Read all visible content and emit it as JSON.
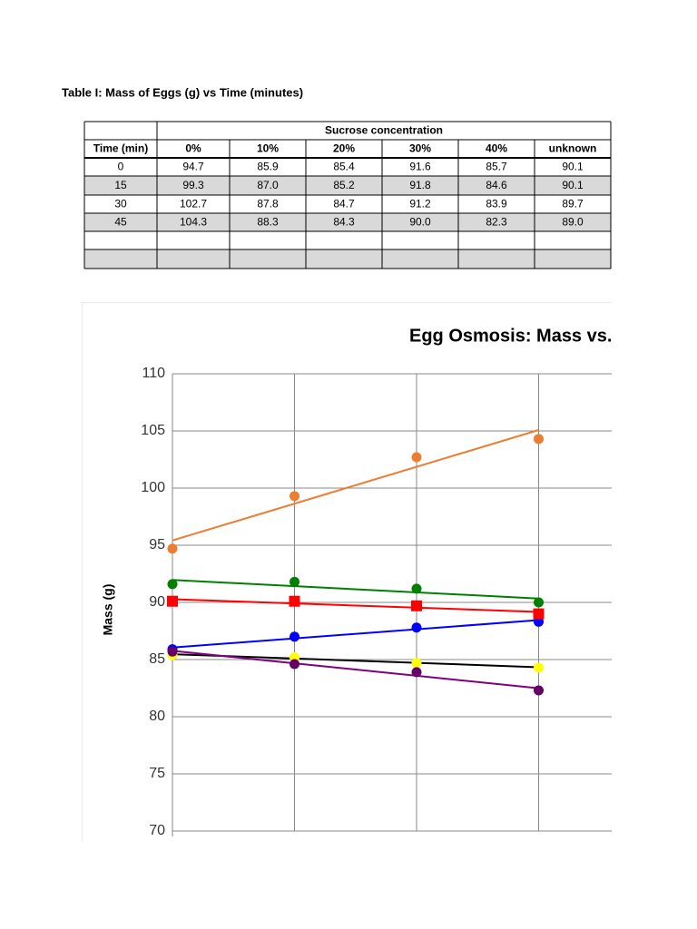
{
  "title": "Table I: Mass of Eggs (g) vs Time (minutes)",
  "table": {
    "group_header": "Sucrose concentration",
    "columns": [
      "Time (min)",
      "0%",
      "10%",
      "20%",
      "30%",
      "40%",
      "unknown"
    ],
    "rows": [
      [
        "0",
        "94.7",
        "85.9",
        "85.4",
        "91.6",
        "85.7",
        "90.1"
      ],
      [
        "15",
        "99.3",
        "87.0",
        "85.2",
        "91.8",
        "84.6",
        "90.1"
      ],
      [
        "30",
        "102.7",
        "87.8",
        "84.7",
        "91.2",
        "83.9",
        "89.7"
      ],
      [
        "45",
        "104.3",
        "88.3",
        "84.3",
        "90.0",
        "82.3",
        "89.0"
      ]
    ]
  },
  "chart_data": {
    "type": "scatter",
    "title": "Egg Osmosis: Mass vs. T",
    "y_label": "Mass (g)",
    "x": [
      0,
      15,
      30,
      45
    ],
    "xlim": [
      0,
      60
    ],
    "xticks": [
      0,
      15,
      30,
      45
    ],
    "ylim": [
      70,
      110
    ],
    "yticks": [
      70,
      75,
      80,
      85,
      90,
      95,
      100,
      105,
      110
    ],
    "grid": true,
    "trendline": "linear",
    "series": [
      {
        "name": "0%",
        "color": "#ed7d31",
        "trendline_color": "#ed7d31",
        "marker": "circle",
        "values": [
          94.7,
          99.3,
          102.7,
          104.3
        ]
      },
      {
        "name": "10%",
        "color": "#0000ff",
        "trendline_color": "#0000ff",
        "marker": "circle",
        "values": [
          85.9,
          87.0,
          87.8,
          88.3
        ]
      },
      {
        "name": "20%",
        "color": "#ffff00",
        "trendline_color": "#000000",
        "marker": "circle",
        "values": [
          85.4,
          85.2,
          84.7,
          84.3
        ]
      },
      {
        "name": "30%",
        "color": "#008000",
        "trendline_color": "#008000",
        "marker": "circle",
        "values": [
          91.6,
          91.8,
          91.2,
          90.0
        ]
      },
      {
        "name": "40%",
        "color": "#660066",
        "trendline_color": "#800080",
        "marker": "circle",
        "values": [
          85.7,
          84.6,
          83.9,
          82.3
        ]
      },
      {
        "name": "unknown",
        "color": "#ff0000",
        "trendline_color": "#ff0000",
        "marker": "square",
        "values": [
          90.1,
          90.1,
          89.7,
          89.0
        ]
      }
    ]
  }
}
